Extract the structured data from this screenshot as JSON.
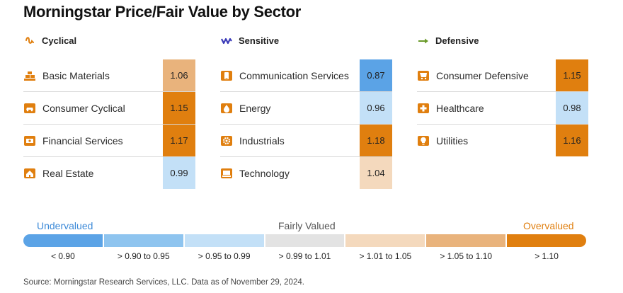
{
  "title": "Morningstar Price/Fair Value by Sector",
  "chart_data": {
    "type": "table",
    "groups": [
      {
        "name": "Cyclical",
        "icon": "cyclical-wave-icon",
        "sectors": [
          {
            "name": "Basic Materials",
            "icon": "basic-materials-icon",
            "value": 1.06
          },
          {
            "name": "Consumer Cyclical",
            "icon": "consumer-cyclical-icon",
            "value": 1.15
          },
          {
            "name": "Financial Services",
            "icon": "financial-services-icon",
            "value": 1.17
          },
          {
            "name": "Real Estate",
            "icon": "real-estate-icon",
            "value": 0.99
          }
        ]
      },
      {
        "name": "Sensitive",
        "icon": "sensitive-zigzag-icon",
        "sectors": [
          {
            "name": "Communication Services",
            "icon": "communication-services-icon",
            "value": 0.87
          },
          {
            "name": "Energy",
            "icon": "energy-icon",
            "value": 0.96
          },
          {
            "name": "Industrials",
            "icon": "industrials-icon",
            "value": 1.18
          },
          {
            "name": "Technology",
            "icon": "technology-icon",
            "value": 1.04
          }
        ]
      },
      {
        "name": "Defensive",
        "icon": "defensive-arrow-icon",
        "sectors": [
          {
            "name": "Consumer Defensive",
            "icon": "consumer-defensive-icon",
            "value": 1.15
          },
          {
            "name": "Healthcare",
            "icon": "healthcare-icon",
            "value": 0.98
          },
          {
            "name": "Utilities",
            "icon": "utilities-icon",
            "value": 1.16
          }
        ]
      }
    ],
    "legend": {
      "undervalued": "Undervalued",
      "fairly_valued": "Fairly Valued",
      "overvalued": "Overvalued",
      "bins": [
        {
          "label": "< 0.90",
          "color": "#5ba3e6"
        },
        {
          "label": "> 0.90 to 0.95",
          "color": "#8ec4ef"
        },
        {
          "label": "> 0.95 to 0.99",
          "color": "#c3e0f7"
        },
        {
          "label": "> 0.99 to 1.01",
          "color": "#e3e3e3"
        },
        {
          "label": "> 1.01 to 1.05",
          "color": "#f4d9bd"
        },
        {
          "label": "> 1.05 to 1.10",
          "color": "#e9b37c"
        },
        {
          "label": "> 1.10",
          "color": "#e07f0f"
        }
      ]
    },
    "sector_icon_color": "#e07f0f",
    "group_icon_colors": {
      "Cyclical": "#e07f0f",
      "Sensitive": "#3a3ab8",
      "Defensive": "#6a9a2a"
    }
  },
  "source": "Source: Morningstar Research Services, LLC. Data as of November 29, 2024."
}
